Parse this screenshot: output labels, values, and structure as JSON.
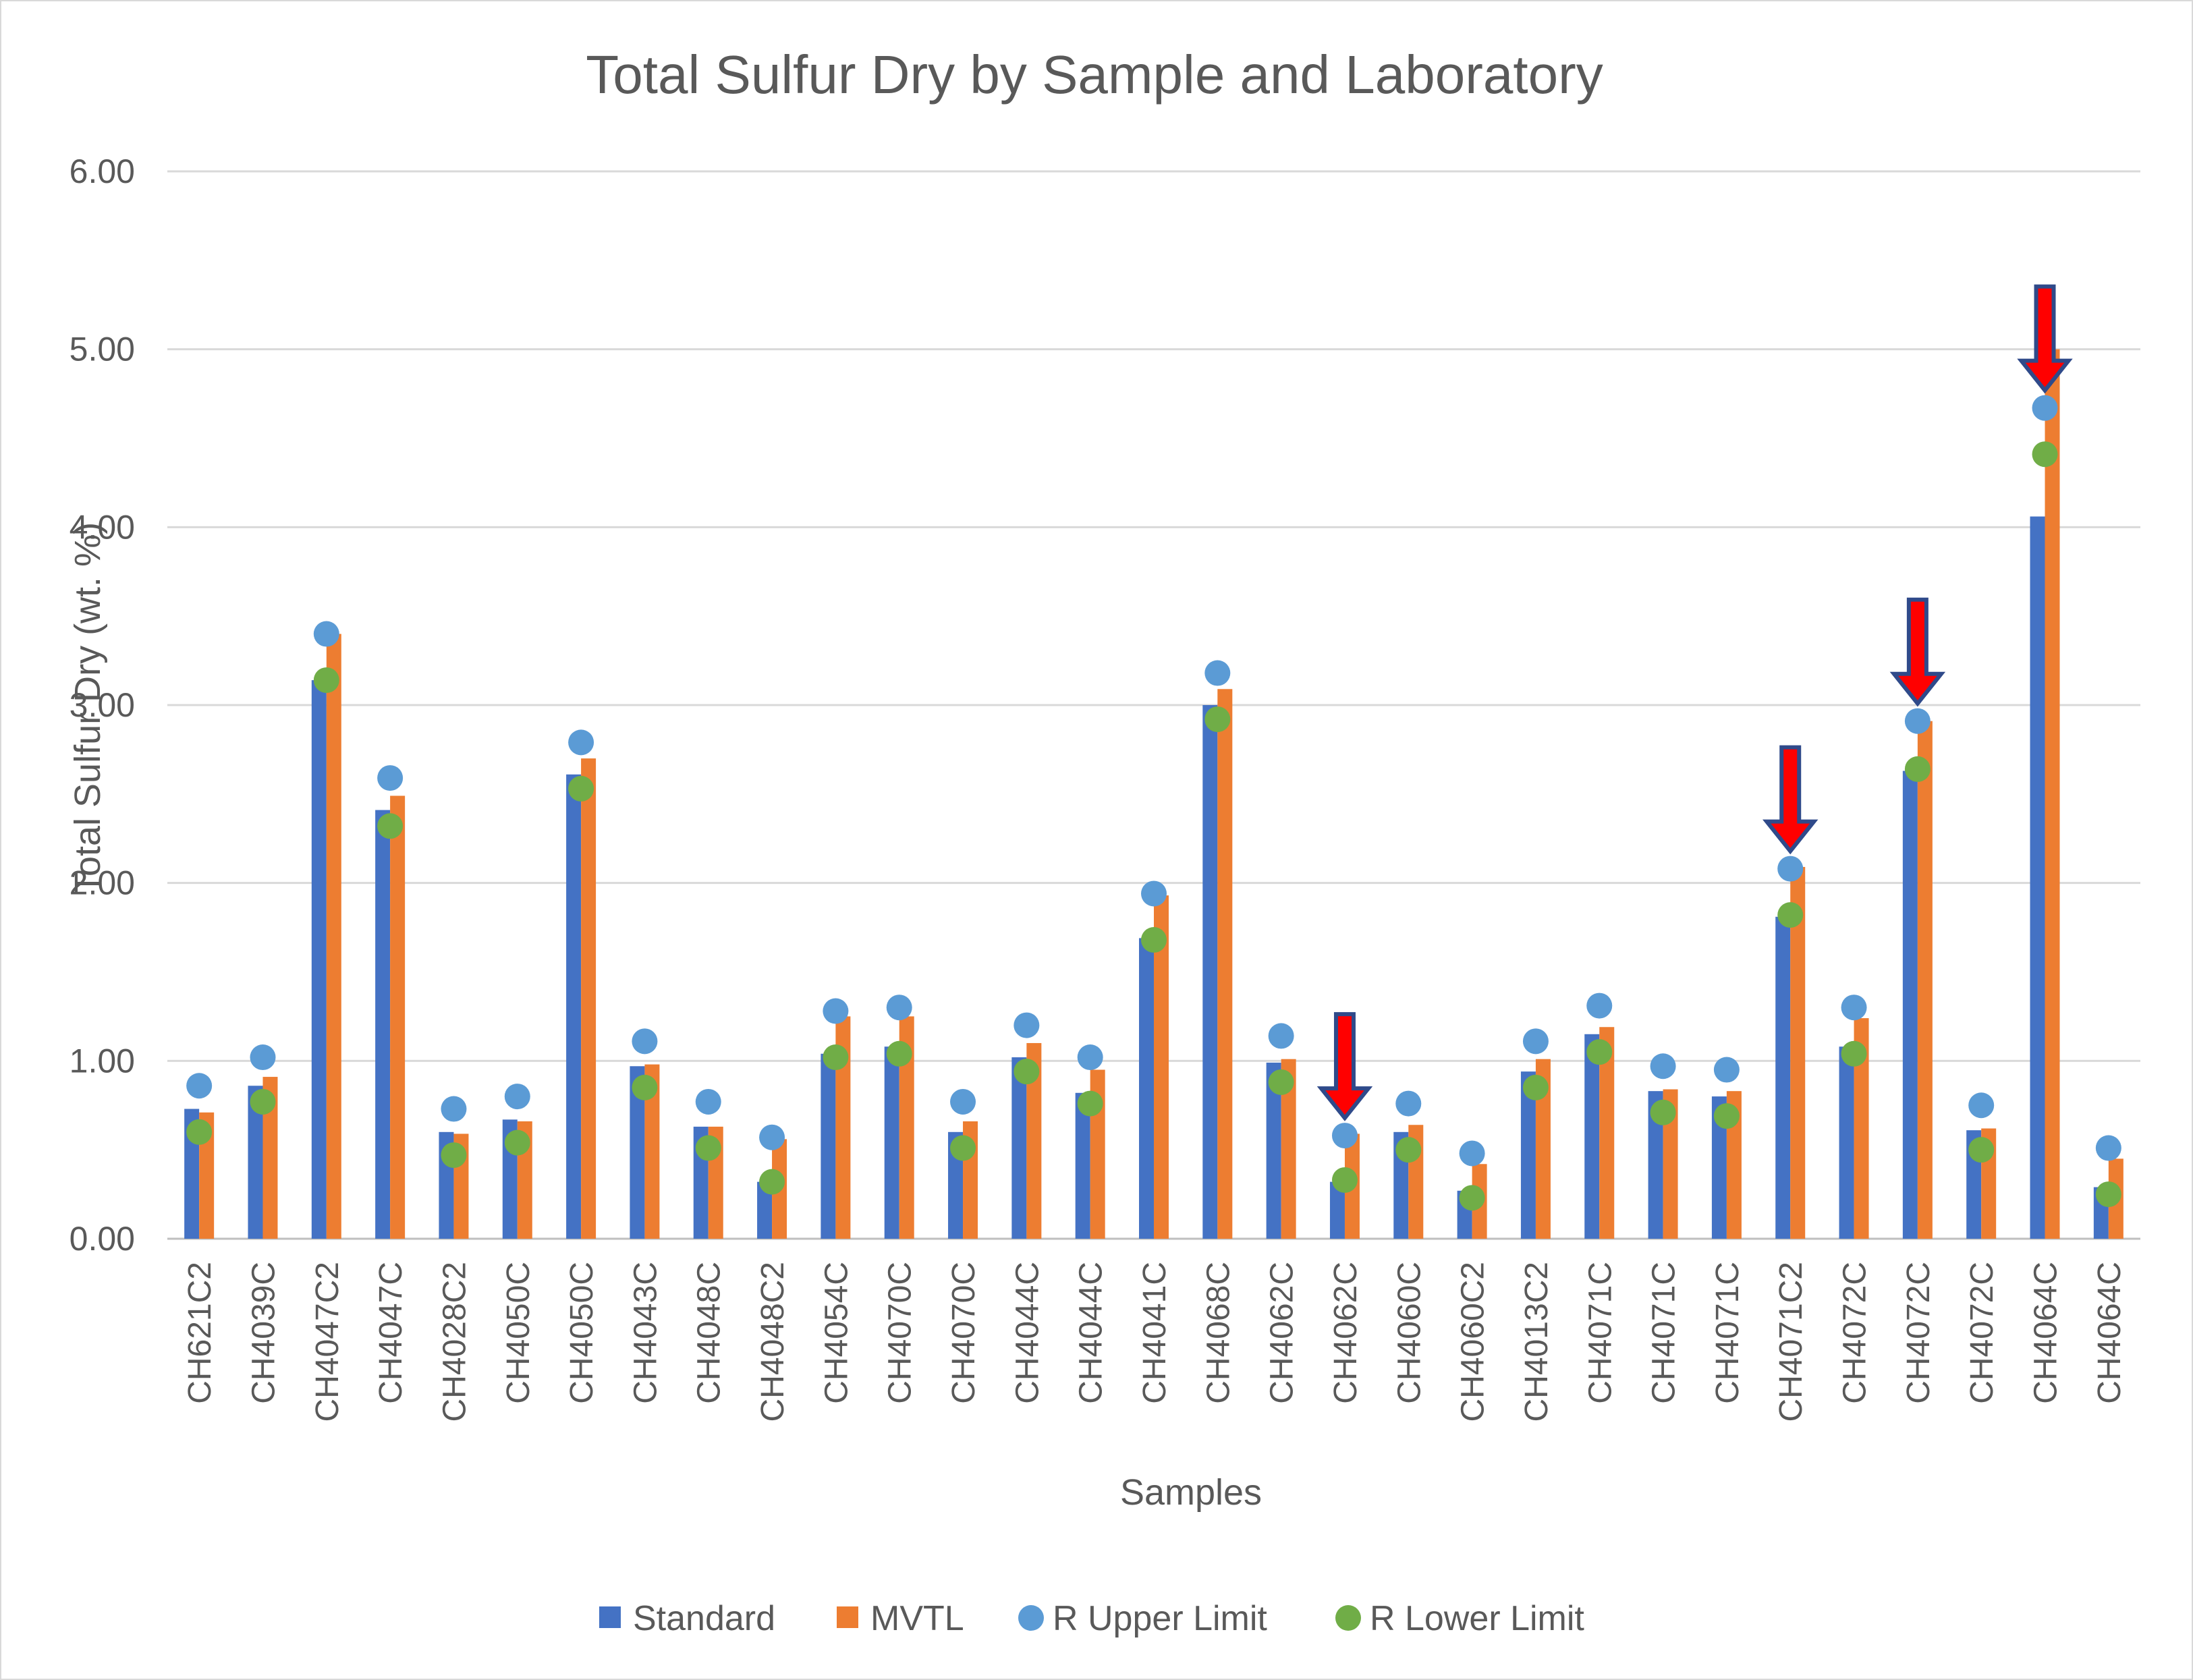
{
  "chart_data": {
    "type": "bar",
    "title": "Total Sulfur Dry by Sample and Laboratory",
    "xlabel": "Samples",
    "ylabel": "Total Sulfur Dry (wt. %)",
    "ylim": [
      0,
      6
    ],
    "yticks": [
      "0.00",
      "1.00",
      "2.00",
      "3.00",
      "4.00",
      "5.00",
      "6.00"
    ],
    "grid": true,
    "legend_position": "bottom",
    "categories": [
      "CH621C2",
      "CH4039C",
      "CH4047C2",
      "CH4047C",
      "CH4028C2",
      "CH4050C",
      "CH4050C",
      "CH4043C",
      "CH4048C",
      "CH4048C2",
      "CH4054C",
      "CH4070C",
      "CH4070C",
      "CH4044C",
      "CH4044C",
      "CH4041C",
      "CH4068C",
      "CH4062C",
      "CH4062C",
      "CH4060C",
      "CH4060C2",
      "CH4013C2",
      "CH4071C",
      "CH4071C",
      "CH4071C",
      "CH4071C2",
      "CH4072C",
      "CH4072C",
      "CH4072C",
      "CH4064C",
      "CH4064C"
    ],
    "series": [
      {
        "name": "Standard",
        "kind": "bar",
        "color": "#4472c4",
        "values": [
          0.73,
          0.86,
          3.14,
          2.41,
          0.6,
          0.67,
          2.61,
          0.97,
          0.63,
          0.32,
          1.04,
          1.08,
          0.6,
          1.02,
          0.82,
          1.69,
          3.0,
          0.99,
          0.32,
          0.6,
          0.27,
          0.94,
          1.15,
          0.83,
          0.8,
          1.81,
          1.08,
          2.63,
          0.61,
          4.06,
          0.29
        ]
      },
      {
        "name": "MVTL",
        "kind": "bar",
        "color": "#ed7d31",
        "values": [
          0.71,
          0.91,
          3.4,
          2.49,
          0.59,
          0.66,
          2.7,
          0.98,
          0.63,
          0.56,
          1.25,
          1.25,
          0.66,
          1.1,
          0.95,
          1.93,
          3.09,
          1.01,
          0.59,
          0.64,
          0.42,
          1.01,
          1.19,
          0.84,
          0.83,
          2.09,
          1.24,
          2.91,
          0.62,
          5.0,
          0.45
        ]
      },
      {
        "name": "R Upper Limit",
        "kind": "point",
        "color": "#5b9bd5",
        "values": [
          0.86,
          1.02,
          3.4,
          2.59,
          0.73,
          0.8,
          2.79,
          1.11,
          0.77,
          0.57,
          1.28,
          1.3,
          0.77,
          1.2,
          1.02,
          1.94,
          3.18,
          1.14,
          0.58,
          0.76,
          0.48,
          1.11,
          1.31,
          0.97,
          0.95,
          2.08,
          1.3,
          2.91,
          0.75,
          4.67,
          0.51
        ]
      },
      {
        "name": "R Lower Limit",
        "kind": "point",
        "color": "#70ad47",
        "values": [
          0.6,
          0.77,
          3.14,
          2.32,
          0.47,
          0.54,
          2.53,
          0.85,
          0.51,
          0.32,
          1.02,
          1.04,
          0.51,
          0.94,
          0.76,
          1.68,
          2.92,
          0.88,
          0.33,
          0.5,
          0.23,
          0.85,
          1.05,
          0.71,
          0.69,
          1.82,
          1.04,
          2.64,
          0.5,
          4.41,
          0.25
        ]
      }
    ],
    "annotations": [
      {
        "type": "arrow",
        "category_index": 18,
        "color": "#ff0000"
      },
      {
        "type": "arrow",
        "category_index": 25,
        "color": "#ff0000"
      },
      {
        "type": "arrow",
        "category_index": 27,
        "color": "#ff0000"
      },
      {
        "type": "arrow",
        "category_index": 29,
        "color": "#ff0000"
      }
    ]
  }
}
